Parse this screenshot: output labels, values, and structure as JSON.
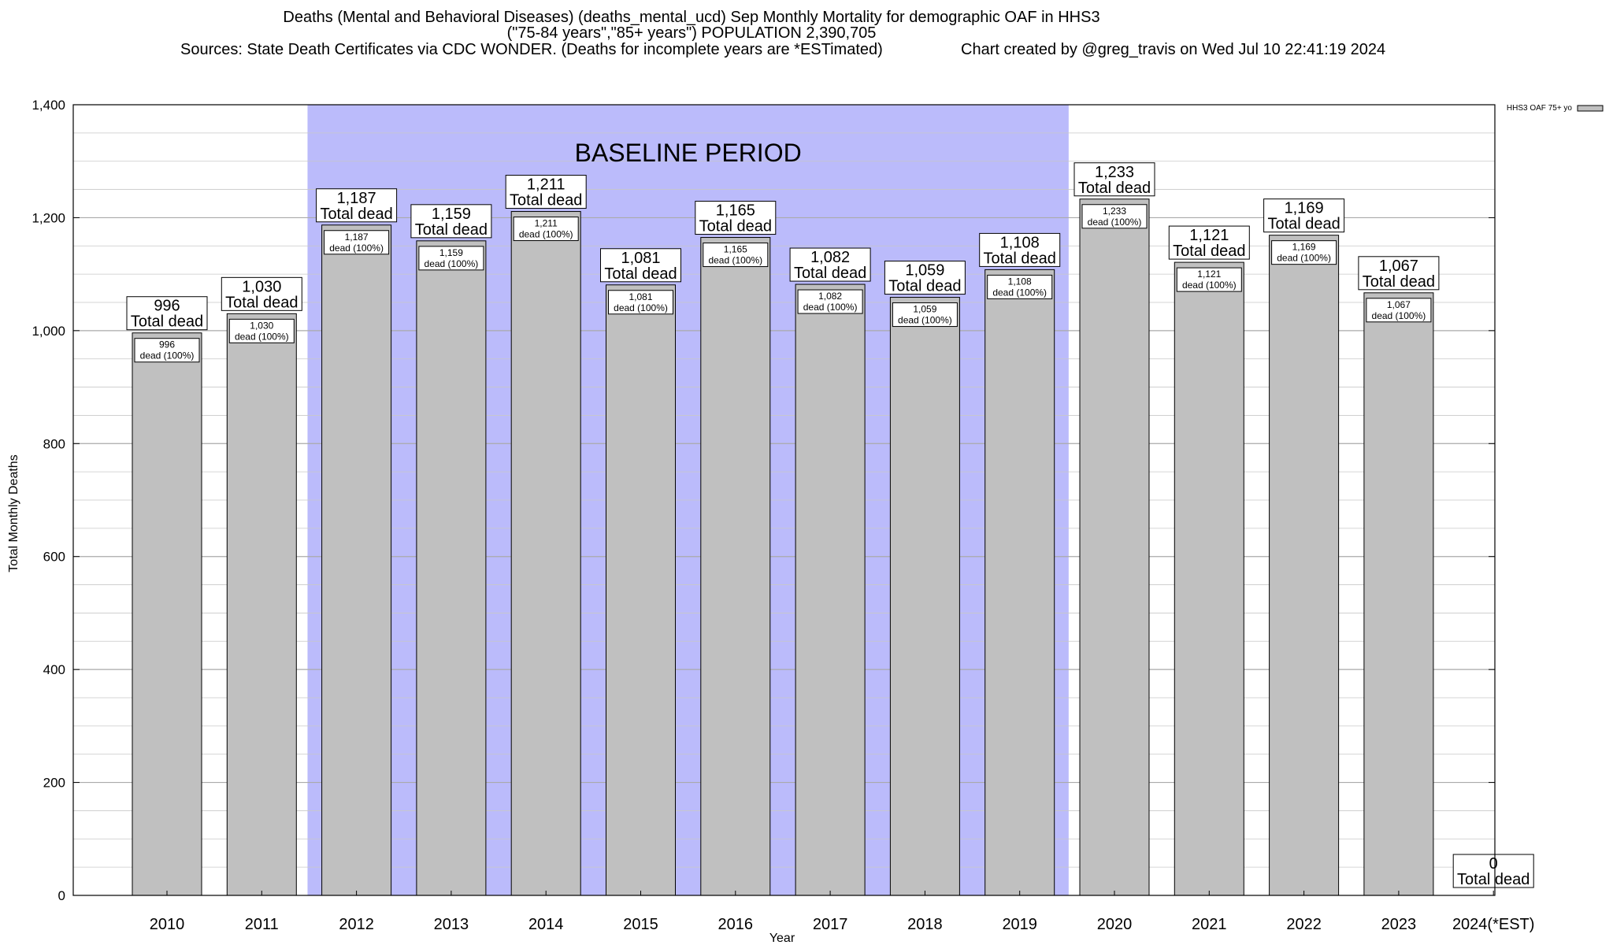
{
  "chart_data": {
    "type": "bar",
    "title": "Deaths (Mental and Behavioral Diseases) (deaths_mental_ucd) Sep Monthly Mortality for demographic OAF in HHS3",
    "subtitle": "(\"75-84 years\",\"85+ years\") POPULATION 2,390,705",
    "sources": "Sources: State Death Certificates via CDC WONDER. (Deaths for incomplete years are *ESTimated)",
    "credit": "Chart created by @greg_travis on Wed Jul 10 22:41:19 2024",
    "xlabel": "Year",
    "ylabel": "Total Monthly Deaths",
    "ylim": [
      0,
      1400
    ],
    "yticks": [
      0,
      200,
      400,
      600,
      800,
      1000,
      1200,
      1400
    ],
    "ytick_labels": [
      "0",
      "200",
      "400",
      "600",
      "800",
      "1,000",
      "1,200",
      "1,400"
    ],
    "grid": true,
    "legend": {
      "placement": "top-right",
      "label": "HHS3 OAF 75+ yo"
    },
    "baseline_label": "BASELINE PERIOD",
    "baseline_range": [
      "2012",
      "2019"
    ],
    "categories": [
      "2010",
      "2011",
      "2012",
      "2013",
      "2014",
      "2015",
      "2016",
      "2017",
      "2018",
      "2019",
      "2020",
      "2021",
      "2022",
      "2023",
      "2024(*EST)"
    ],
    "values": [
      996,
      1030,
      1187,
      1159,
      1211,
      1081,
      1165,
      1082,
      1059,
      1108,
      1233,
      1121,
      1169,
      1067,
      0
    ],
    "value_labels": [
      "996",
      "1,030",
      "1,187",
      "1,159",
      "1,211",
      "1,081",
      "1,165",
      "1,082",
      "1,059",
      "1,108",
      "1,233",
      "1,121",
      "1,169",
      "1,067",
      "0"
    ],
    "total_label": "Total dead",
    "inner_label": "dead (100%)",
    "colors": {
      "bar": "#c0c0c0",
      "baseline": "#bbbbfb",
      "grid": "#999999"
    }
  }
}
